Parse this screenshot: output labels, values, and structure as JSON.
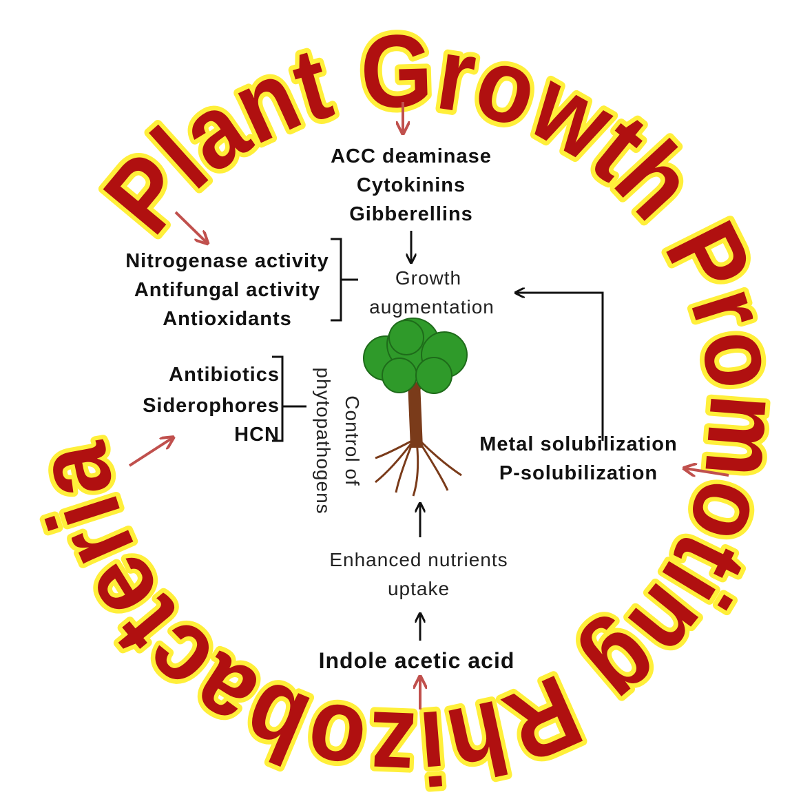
{
  "title": "Plant Growth Promoting Rhizobacteria",
  "nodes": {
    "hormones": [
      "ACC deaminase",
      "Cytokinins",
      "Gibberellins"
    ],
    "growth": [
      "Growth",
      "augmentation"
    ],
    "activities": [
      "Nitrogenase activity",
      "Antifungal activity",
      "Antioxidants"
    ],
    "biocontrol": [
      "Antibiotics",
      "Siderophores",
      "HCN"
    ],
    "control": [
      "Control of",
      "phytopathogens"
    ],
    "solubilization": [
      "Metal solubilization",
      "P-solubilization"
    ],
    "nutrients": [
      "Enhanced nutrients",
      "uptake"
    ],
    "iaa": [
      "Indole acetic acid"
    ]
  }
}
